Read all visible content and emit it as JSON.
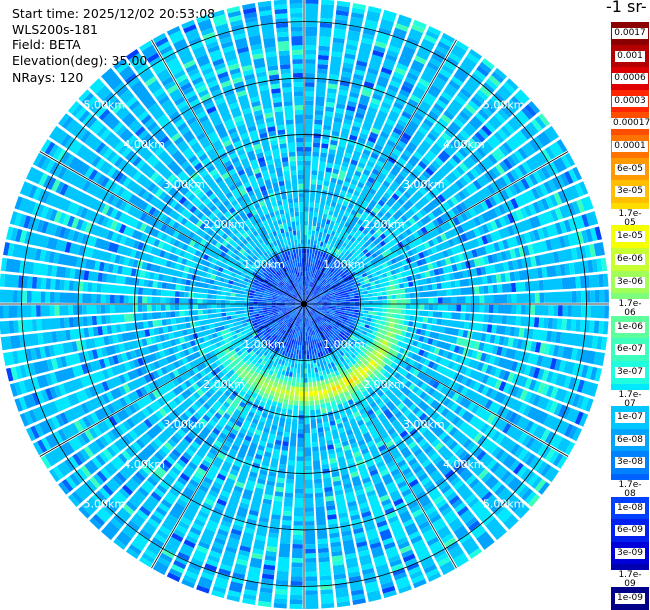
{
  "header": {
    "start_time": "Start time: 2025/12/02 20:53:08",
    "instrument": "WLS200s-181",
    "field": "Field: BETA",
    "elevation": "Elevation(deg): 35.00",
    "nrays": "NRays: 120"
  },
  "colorbar": {
    "title_fragment": "-1 sr-",
    "boxes": [
      {
        "label": "0.0017",
        "color": "#8b0000"
      },
      {
        "label": "0.001",
        "color": "#b40000"
      },
      {
        "label": "0.0006",
        "color": "#de0000"
      },
      {
        "label": "0.0003",
        "color": "#ff2600"
      },
      {
        "label": "0.00017",
        "color": "#ff4e00"
      },
      {
        "label": "0.0001",
        "color": "#ff7400"
      },
      {
        "label": "6e-05",
        "color": "#ff9a00"
      },
      {
        "label": "3e-05",
        "color": "#ffbf00"
      },
      {
        "label": "1.7e-05",
        "color": "#ffdc00"
      },
      {
        "label": "1e-05",
        "color": "#f5ff00"
      },
      {
        "label": "6e-06",
        "color": "#c7ff30"
      },
      {
        "label": "3e-06",
        "color": "#a0ff58"
      },
      {
        "label": "1.7e-06",
        "color": "#7dff7b"
      },
      {
        "label": "1e-06",
        "color": "#5cff9c"
      },
      {
        "label": "6e-07",
        "color": "#3cffbd"
      },
      {
        "label": "3e-07",
        "color": "#1fffe0"
      },
      {
        "label": "1.7e-07",
        "color": "#00e8ff"
      },
      {
        "label": "1e-07",
        "color": "#00c6ff"
      },
      {
        "label": "6e-08",
        "color": "#00a4ff"
      },
      {
        "label": "3e-08",
        "color": "#0082ff"
      },
      {
        "label": "1.7e-08",
        "color": "#0062ff"
      },
      {
        "label": "1e-08",
        "color": "#0040ff"
      },
      {
        "label": "6e-09",
        "color": "#0020f0"
      },
      {
        "label": "3e-09",
        "color": "#0000d8"
      },
      {
        "label": "1.7e-09",
        "color": "#0000b0"
      },
      {
        "label": "1e-09",
        "color": "#000088"
      }
    ]
  },
  "chart_data": {
    "type": "heatmap",
    "projection": "polar-ppi",
    "field": "BETA",
    "elevation_deg": 35.0,
    "n_rays": 120,
    "range_max_km": 5.4,
    "range_rings_km": [
      1,
      2,
      3,
      4,
      5
    ],
    "ring_labels": [
      "1.00km",
      "2.00km",
      "3.00km",
      "4.00km",
      "5.00km"
    ],
    "spoke_angles_deg": [
      0,
      30,
      60,
      90,
      120,
      150,
      180,
      210,
      240,
      270,
      300,
      330
    ],
    "scale": "log",
    "color_range": [
      1e-09,
      0.0017
    ],
    "background_level": 1e-07,
    "features": [
      {
        "description": "enhanced backscatter ring",
        "range_km": 1.6,
        "azimuth_deg_center": 160,
        "azimuth_span_deg": 200,
        "peak_value": 1e-05
      },
      {
        "description": "near-field low values",
        "range_km_max": 1.0,
        "value": 1e-08
      }
    ]
  }
}
